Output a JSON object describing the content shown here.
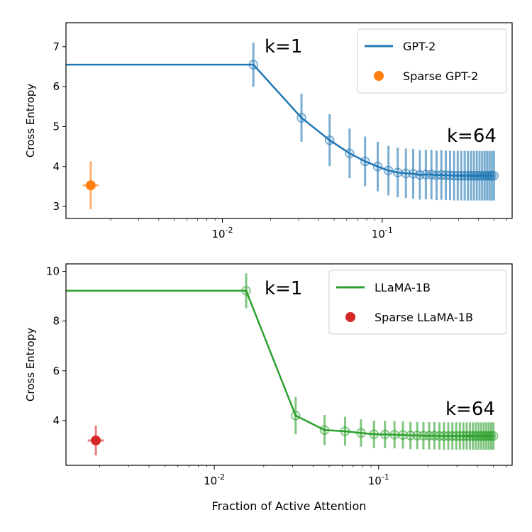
{
  "chart_data": [
    {
      "type": "line",
      "ylabel": "Cross Entropy",
      "xlabel": "",
      "xscale": "log",
      "xlim": [
        0.00105,
        0.65
      ],
      "ylim": [
        2.7,
        7.6
      ],
      "xticks": [
        "10^-2",
        "10^-1"
      ],
      "yticks": [
        3,
        4,
        5,
        6,
        7
      ],
      "legend_position": "top-right",
      "annotations": [
        "k=1",
        "k=64"
      ],
      "series": [
        {
          "name": "GPT-2",
          "color": "#1f77b4",
          "kind": "line-errorbar",
          "x": [
            0.015625,
            0.03125,
            0.046875,
            0.0625,
            0.078125,
            0.09375,
            0.109375,
            0.125,
            0.140625,
            0.15625,
            0.171875,
            0.1875,
            0.203125,
            0.21875,
            0.234375,
            0.25,
            0.265625,
            0.28125,
            0.296875,
            0.3125,
            0.328125,
            0.34375,
            0.359375,
            0.375,
            0.390625,
            0.40625,
            0.421875,
            0.4375,
            0.453125,
            0.46875,
            0.484375,
            0.5
          ],
          "y": [
            6.55,
            5.22,
            4.66,
            4.33,
            4.13,
            4.0,
            3.9,
            3.85,
            3.83,
            3.82,
            3.79,
            3.8,
            3.8,
            3.78,
            3.79,
            3.78,
            3.78,
            3.77,
            3.77,
            3.77,
            3.77,
            3.77,
            3.77,
            3.77,
            3.77,
            3.77,
            3.77,
            3.77,
            3.77,
            3.77,
            3.77,
            3.77
          ],
          "yerr": [
            0.55,
            0.6,
            0.65,
            0.62,
            0.62,
            0.62,
            0.62,
            0.62,
            0.62,
            0.62,
            0.62,
            0.62,
            0.62,
            0.62,
            0.62,
            0.62,
            0.62,
            0.62,
            0.62,
            0.62,
            0.62,
            0.62,
            0.62,
            0.62,
            0.62,
            0.62,
            0.62,
            0.62,
            0.62,
            0.62,
            0.62,
            0.62
          ]
        },
        {
          "name": "Sparse GPT-2",
          "color": "#ff7f0e",
          "kind": "point-errorbar",
          "x": [
            0.0015
          ],
          "y": [
            3.53
          ],
          "yerr": [
            0.6
          ],
          "xerr_factor": 1.12
        }
      ]
    },
    {
      "type": "line",
      "ylabel": "Cross Entropy",
      "xlabel": "Fraction of Active Attention",
      "xscale": "log",
      "xlim": [
        0.00125,
        0.65
      ],
      "ylim": [
        2.2,
        10.3
      ],
      "xticks": [
        "10^-2",
        "10^-1"
      ],
      "yticks": [
        4,
        6,
        8,
        10
      ],
      "legend_position": "top-right",
      "annotations": [
        "k=1",
        "k=64"
      ],
      "series": [
        {
          "name": "LLaMA-1B",
          "color": "#2ca02c",
          "kind": "line-errorbar",
          "x": [
            0.015625,
            0.03125,
            0.046875,
            0.0625,
            0.078125,
            0.09375,
            0.109375,
            0.125,
            0.140625,
            0.15625,
            0.171875,
            0.1875,
            0.203125,
            0.21875,
            0.234375,
            0.25,
            0.265625,
            0.28125,
            0.296875,
            0.3125,
            0.328125,
            0.34375,
            0.359375,
            0.375,
            0.390625,
            0.40625,
            0.421875,
            0.4375,
            0.453125,
            0.46875,
            0.484375,
            0.5
          ],
          "y": [
            9.22,
            4.2,
            3.62,
            3.57,
            3.5,
            3.45,
            3.44,
            3.43,
            3.42,
            3.4,
            3.4,
            3.39,
            3.39,
            3.39,
            3.38,
            3.38,
            3.38,
            3.38,
            3.38,
            3.38,
            3.38,
            3.38,
            3.38,
            3.38,
            3.38,
            3.38,
            3.38,
            3.38,
            3.38,
            3.38,
            3.38,
            3.38
          ],
          "yerr": [
            0.7,
            0.75,
            0.6,
            0.58,
            0.55,
            0.55,
            0.55,
            0.55,
            0.55,
            0.55,
            0.55,
            0.55,
            0.55,
            0.55,
            0.55,
            0.55,
            0.55,
            0.55,
            0.55,
            0.55,
            0.55,
            0.55,
            0.55,
            0.55,
            0.55,
            0.55,
            0.55,
            0.55,
            0.55,
            0.55,
            0.55,
            0.55
          ]
        },
        {
          "name": "Sparse LLaMA-1B",
          "color": "#d62728",
          "kind": "point-errorbar",
          "x": [
            0.0019
          ],
          "y": [
            3.2
          ],
          "yerr": [
            0.6
          ],
          "xerr_factor": 1.12
        }
      ]
    }
  ]
}
